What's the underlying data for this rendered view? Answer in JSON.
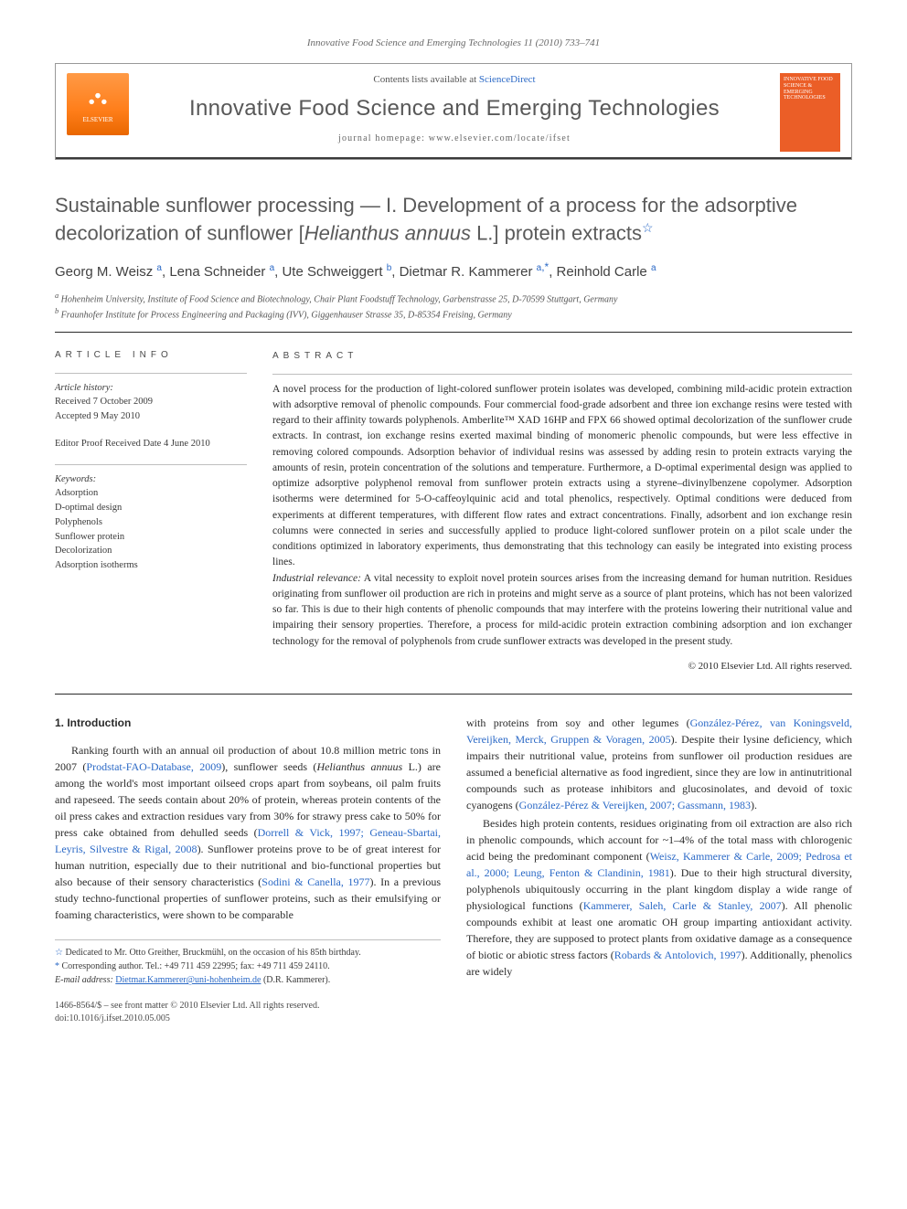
{
  "running_header": "Innovative Food Science and Emerging Technologies 11 (2010) 733–741",
  "masthead": {
    "publisher_label": "ELSEVIER",
    "contents_lead": "Contents lists available at ",
    "contents_link": "ScienceDirect",
    "journal_name": "Innovative Food Science and Emerging Technologies",
    "homepage": "journal homepage: www.elsevier.com/locate/ifset",
    "cover_label": "INNOVATIVE FOOD SCIENCE & EMERGING TECHNOLOGIES"
  },
  "title": {
    "pre": "Sustainable sunflower processing — I. Development of a process for the adsorptive decolorization of sunflower [",
    "species": "Helianthus annuus",
    "post": " L.] protein extracts"
  },
  "authors_list": "Georg M. Weisz ᵃ, Lena Schneider ᵃ, Ute Schweiggert ᵇ, Dietmar R. Kammerer ᵃ٫*, Reinhold Carle ᵃ",
  "authors": [
    {
      "name": "Georg M. Weisz",
      "aff": "a",
      "corr": false
    },
    {
      "name": "Lena Schneider",
      "aff": "a",
      "corr": false
    },
    {
      "name": "Ute Schweiggert",
      "aff": "b",
      "corr": false
    },
    {
      "name": "Dietmar R. Kammerer",
      "aff": "a",
      "corr": true
    },
    {
      "name": "Reinhold Carle",
      "aff": "a",
      "corr": false
    }
  ],
  "affiliations": {
    "a": "Hohenheim University, Institute of Food Science and Biotechnology, Chair Plant Foodstuff Technology, Garbenstrasse 25, D-70599 Stuttgart, Germany",
    "b": "Fraunhofer Institute for Process Engineering and Packaging (IVV), Giggenhauser Strasse 35, D-85354 Freising, Germany"
  },
  "article_info": {
    "heading": "article info",
    "history_label": "Article history:",
    "received": "Received 7 October 2009",
    "accepted": "Accepted 9 May 2010",
    "editor_proof": "Editor Proof Received Date 4 June 2010",
    "keywords_label": "Keywords:",
    "keywords": [
      "Adsorption",
      "D-optimal design",
      "Polyphenols",
      "Sunflower protein",
      "Decolorization",
      "Adsorption isotherms"
    ]
  },
  "abstract": {
    "heading": "abstract",
    "text": "A novel process for the production of light-colored sunflower protein isolates was developed, combining mild-acidic protein extraction with adsorptive removal of phenolic compounds. Four commercial food-grade adsorbent and three ion exchange resins were tested with regard to their affinity towards polyphenols. Amberlite™ XAD 16HP and FPX 66 showed optimal decolorization of the sunflower crude extracts. In contrast, ion exchange resins exerted maximal binding of monomeric phenolic compounds, but were less effective in removing colored compounds. Adsorption behavior of individual resins was assessed by adding resin to protein extracts varying the amounts of resin, protein concentration of the solutions and temperature. Furthermore, a D-optimal experimental design was applied to optimize adsorptive polyphenol removal from sunflower protein extracts using a styrene–divinylbenzene copolymer. Adsorption isotherms were determined for 5-O-caffeoylquinic acid and total phenolics, respectively. Optimal conditions were deduced from experiments at different temperatures, with different flow rates and extract concentrations. Finally, adsorbent and ion exchange resin columns were connected in series and successfully applied to produce light-colored sunflower protein on a pilot scale under the conditions optimized in laboratory experiments, thus demonstrating that this technology can easily be integrated into existing process lines.",
    "ir_label": "Industrial relevance:",
    "ir_text": " A vital necessity to exploit novel protein sources arises from the increasing demand for human nutrition. Residues originating from sunflower oil production are rich in proteins and might serve as a source of plant proteins, which has not been valorized so far. This is due to their high contents of phenolic compounds that may interfere with the proteins lowering their nutritional value and impairing their sensory properties. Therefore, a process for mild-acidic protein extraction combining adsorption and ion exchanger technology for the removal of polyphenols from crude sunflower extracts was developed in the present study.",
    "copyright": "© 2010 Elsevier Ltd. All rights reserved."
  },
  "body": {
    "section_heading": "1. Introduction",
    "col1_html": "Ranking fourth with an annual oil production of about 10.8 million metric tons in 2007 (<span class='cite'>Prodstat-FAO-Database, 2009</span>), sunflower seeds (<span class='ital'>Helianthus annuus</span> L.) are among the world's most important oilseed crops apart from soybeans, oil palm fruits and rapeseed. The seeds contain about 20% of protein, whereas protein contents of the oil press cakes and extraction residues vary from 30% for strawy press cake to 50% for press cake obtained from dehulled seeds (<span class='cite'>Dorrell &amp; Vick, 1997; Geneau-Sbartai, Leyris, Silvestre &amp; Rigal, 2008</span>). Sunflower proteins prove to be of great interest for human nutrition, especially due to their nutritional and bio-functional properties but also because of their sensory characteristics (<span class='cite'>Sodini &amp; Canella, 1977</span>). In a previous study techno-functional properties of sunflower proteins, such as their emulsifying or foaming characteristics, were shown to be comparable",
    "col2_p1_html": "with proteins from soy and other legumes (<span class='cite'>González-Pérez, van Koningsveld, Vereijken, Merck, Gruppen &amp; Voragen, 2005</span>). Despite their lysine deficiency, which impairs their nutritional value, proteins from sunflower oil production residues are assumed a beneficial alternative as food ingredient, since they are low in antinutritional compounds such as protease inhibitors and glucosinolates, and devoid of toxic cyanogens (<span class='cite'>González-Pérez &amp; Vereijken, 2007; Gassmann, 1983</span>).",
    "col2_p2_html": "Besides high protein contents, residues originating from oil extraction are also rich in phenolic compounds, which account for ~1–4% of the total mass with chlorogenic acid being the predominant component (<span class='cite'>Weisz, Kammerer &amp; Carle, 2009; Pedrosa et al., 2000; Leung, Fenton &amp; Clandinin, 1981</span>). Due to their high structural diversity, polyphenols ubiquitously occurring in the plant kingdom display a wide range of physiological functions (<span class='cite'>Kammerer, Saleh, Carle &amp; Stanley, 2007</span>). All phenolic compounds exhibit at least one aromatic OH group imparting antioxidant activity. Therefore, they are supposed to protect plants from oxidative damage as a consequence of biotic or abiotic stress factors (<span class='cite'>Robards &amp; Antolovich, 1997</span>). Additionally, phenolics are widely"
  },
  "footnotes": {
    "dedication": "Dedicated to Mr. Otto Greither, Bruckmühl, on the occasion of his 85th birthday.",
    "corresponding": "Corresponding author. Tel.: +49 711 459 22995; fax: +49 711 459 24110.",
    "email_label": "E-mail address:",
    "email": "Dietmar.Kammerer@uni-hohenheim.de",
    "email_person": "(D.R. Kammerer)."
  },
  "bottom": {
    "issn_line": "1466-8564/$ – see front matter © 2010 Elsevier Ltd. All rights reserved.",
    "doi": "doi:10.1016/j.ifset.2010.05.005"
  },
  "colors": {
    "link": "#2b69c6",
    "logo_orange": "#ff7e1a",
    "cover_orange": "#eb5e27",
    "text": "#2a2a2a",
    "muted": "#6a6a6a"
  },
  "fonts": {
    "body": "Georgia / Times",
    "heads": "Trebuchet / Gill Sans",
    "title_size_pt": 22,
    "authors_size_pt": 15,
    "body_size_pt": 12,
    "abstract_size_pt": 11.5,
    "small_size_pt": 10
  }
}
